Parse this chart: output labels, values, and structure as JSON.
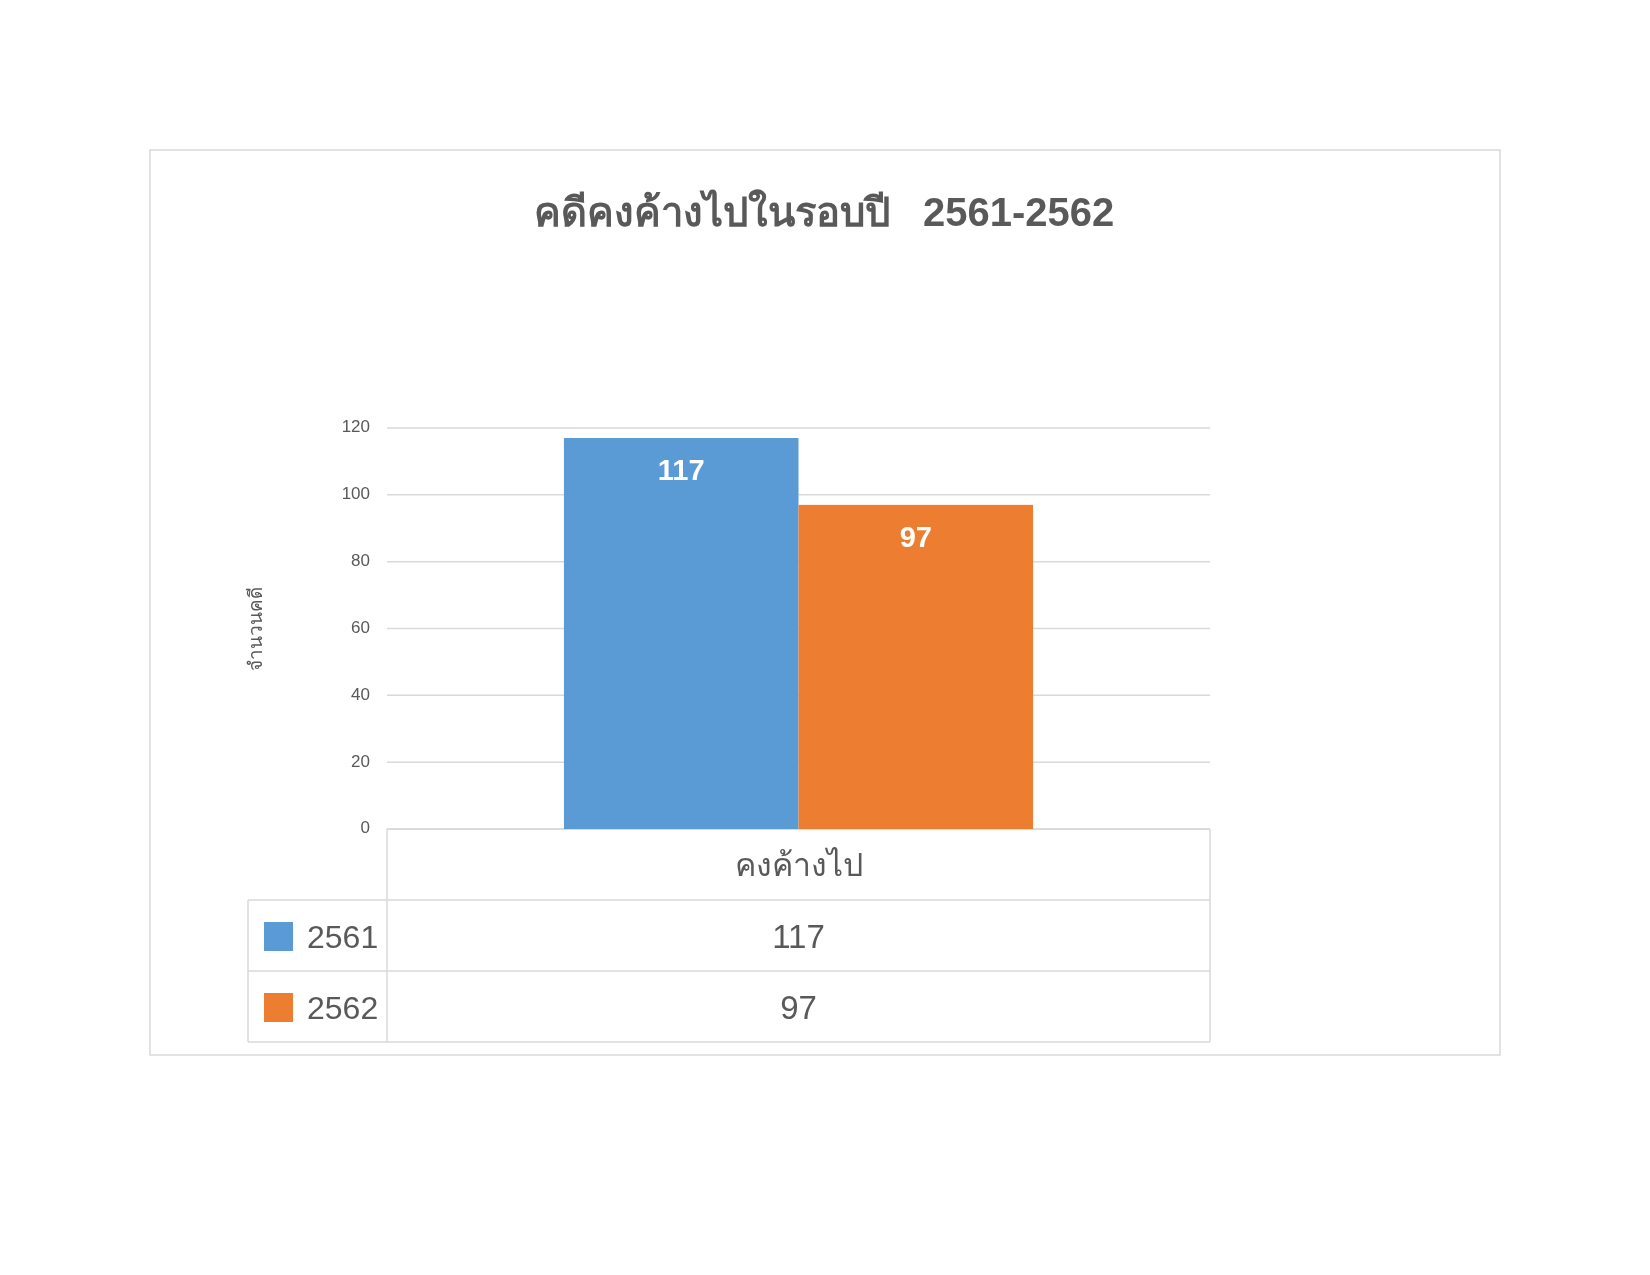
{
  "chart_data": {
    "type": "bar",
    "title": "คดีคงค้างไปในรอบปี   2561-2562",
    "ylabel": "จำนวนคดี",
    "categories": [
      "คงค้างไป"
    ],
    "series": [
      {
        "name": "2561",
        "color": "#5b9bd5",
        "values": [
          117
        ]
      },
      {
        "name": "2562",
        "color": "#ed7d31",
        "values": [
          97
        ]
      }
    ],
    "ylim": [
      0,
      120
    ],
    "yticks": [
      0,
      20,
      40,
      60,
      80,
      100,
      120
    ],
    "grid": "y",
    "data_labels": true,
    "legend": "bottom",
    "annotations": [
      "117",
      "97"
    ]
  }
}
